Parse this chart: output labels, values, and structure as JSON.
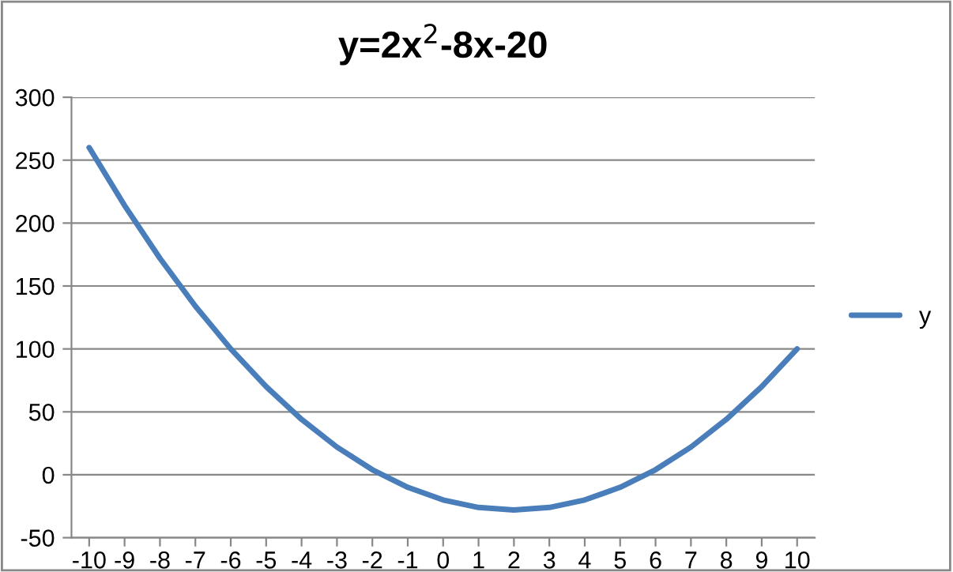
{
  "chart_data": {
    "type": "line",
    "title": "y=2x$^{2}$-8x-20",
    "categories": [
      "-10",
      "-9",
      "-8",
      "-7",
      "-6",
      "-5",
      "-4",
      "-3",
      "-2",
      "-1",
      "0",
      "1",
      "2",
      "3",
      "4",
      "5",
      "6",
      "7",
      "8",
      "9",
      "10"
    ],
    "series": [
      {
        "name": "y",
        "color": "#4a7ebb",
        "values": [
          260,
          214,
          172,
          134,
          100,
          70,
          44,
          22,
          4,
          -10,
          -20,
          -26,
          -28,
          -26,
          -20,
          -10,
          4,
          22,
          44,
          70,
          100
        ]
      }
    ],
    "ylim": [
      -50,
      300
    ],
    "yticks": [
      -50,
      0,
      50,
      100,
      150,
      200,
      250,
      300
    ],
    "grid": "y",
    "legend": "right",
    "marker": "none",
    "line_style": "solid"
  }
}
